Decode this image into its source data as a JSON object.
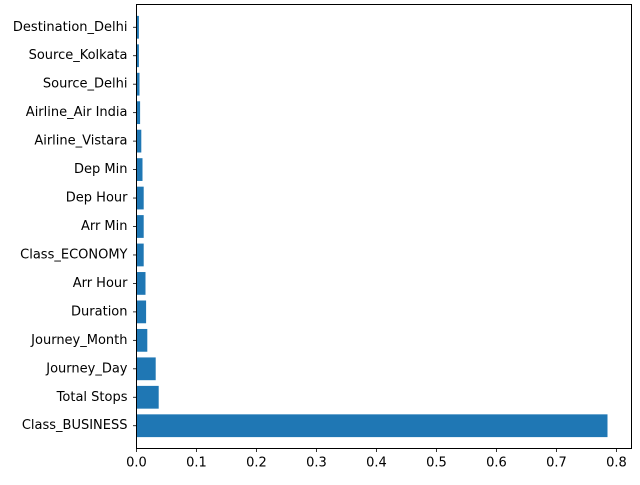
{
  "chart_data": {
    "type": "bar",
    "orientation": "horizontal",
    "title": "",
    "xlabel": "",
    "ylabel": "",
    "categories": [
      "Class_BUSINESS",
      "Total Stops",
      "Journey_Day",
      "Journey_Month",
      "Duration",
      "Arr Hour",
      "Class_ECONOMY",
      "Arr Min",
      "Dep Hour",
      "Dep Min",
      "Airline_Vistara",
      "Airline_Air India",
      "Source_Delhi",
      "Source_Kolkata",
      "Destination_Delhi"
    ],
    "values": [
      0.785,
      0.037,
      0.032,
      0.018,
      0.016,
      0.015,
      0.012,
      0.012,
      0.012,
      0.01,
      0.008,
      0.006,
      0.005,
      0.004,
      0.004
    ],
    "xlim": [
      0,
      0.825
    ],
    "xticks": [
      0.0,
      0.1,
      0.2,
      0.3,
      0.4,
      0.5,
      0.6,
      0.7,
      0.8
    ],
    "xtick_labels": [
      "0.0",
      "0.1",
      "0.2",
      "0.3",
      "0.4",
      "0.5",
      "0.6",
      "0.7",
      "0.8"
    ],
    "grid": false,
    "bar_color": "#1f77b4"
  }
}
